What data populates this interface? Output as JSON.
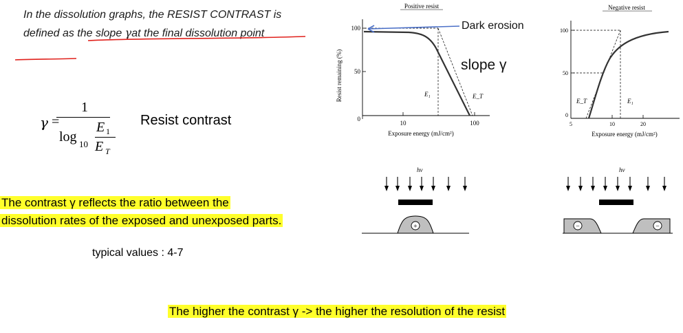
{
  "definition": {
    "text_part1": "In the dissolution graphs, the RESIST CONTRAST is defined as the slope ",
    "gamma": "γ",
    "text_part2": "at the final dissolution point"
  },
  "formula": {
    "gamma": "γ",
    "equals": "=",
    "numerator": "1",
    "log": "log",
    "log_base": "10",
    "e1": "E",
    "e1_sub": "1",
    "et": "E",
    "et_sub": "T"
  },
  "formula_label": "Resist contrast",
  "contrast_note": {
    "line1": "The contrast  γ  reflects the ratio between the",
    "line2": "dissolution rates of the exposed and unexposed parts."
  },
  "typical_values": "typical values : 4-7",
  "conclusion": "The higher the contrast  γ  -> the higher the resolution of the resist",
  "positive_chart": {
    "title": "Positive resist",
    "ylabel": "Resist remaining (%)",
    "xlabel": "Exposure energy (mJ/cm²)",
    "y_ticks": [
      "100",
      "50",
      "0"
    ],
    "x_ticks": [
      "10",
      "100"
    ],
    "e1_label": "E₁",
    "et_label": "E_T",
    "annotation_erosion": "Dark erosion",
    "annotation_slope": "slope γ"
  },
  "negative_chart": {
    "title": "Negative resist",
    "xlabel": "Exposure energy (mJ/cm²)",
    "y_ticks": [
      "100",
      "50",
      "0"
    ],
    "x_ticks": [
      "5",
      "10",
      "20"
    ],
    "et_label": "E_T",
    "e1_label": "E₁"
  },
  "illustration": {
    "hv_label": "hν",
    "positive_sign": "+",
    "negative_sign": "−"
  },
  "colors": {
    "highlight": "#ffff2b",
    "underline_red": "#e0201b",
    "arrow_blue": "#4a6fc7",
    "resist_gray": "#bfbfbf"
  }
}
